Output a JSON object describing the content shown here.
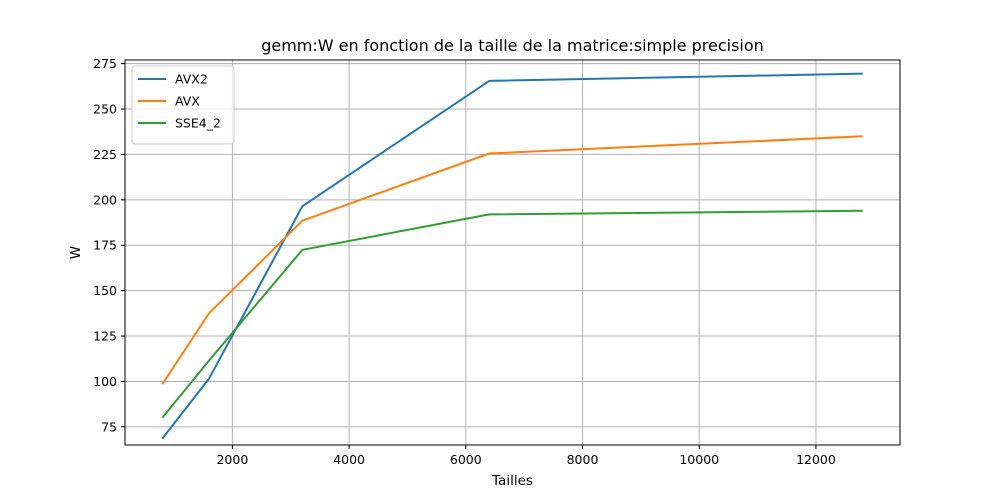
{
  "chart_data": {
    "type": "line",
    "title": "gemm:W en fonction de la taille de la matrice:simple precision",
    "xlabel": "Tailles",
    "ylabel": "W",
    "xlim": [
      160,
      13440
    ],
    "ylim": [
      65,
      277
    ],
    "xticks": [
      2000,
      4000,
      6000,
      8000,
      10000,
      12000
    ],
    "yticks": [
      75,
      100,
      125,
      150,
      175,
      200,
      225,
      250,
      275
    ],
    "grid": true,
    "legend_position": "top-left",
    "x": [
      800,
      1600,
      3200,
      6400,
      12800
    ],
    "series": [
      {
        "name": "AVX2",
        "color": "#1f77b4",
        "values": [
          68.5,
          101.5,
          196.5,
          265.5,
          269.5
        ]
      },
      {
        "name": "AVX",
        "color": "#ff7f0e",
        "values": [
          98.5,
          137.5,
          188.5,
          225.5,
          235.0
        ]
      },
      {
        "name": "SSE4_2",
        "color": "#2ca02c",
        "values": [
          80.0,
          111.5,
          172.5,
          192.0,
          194.0
        ]
      }
    ]
  }
}
